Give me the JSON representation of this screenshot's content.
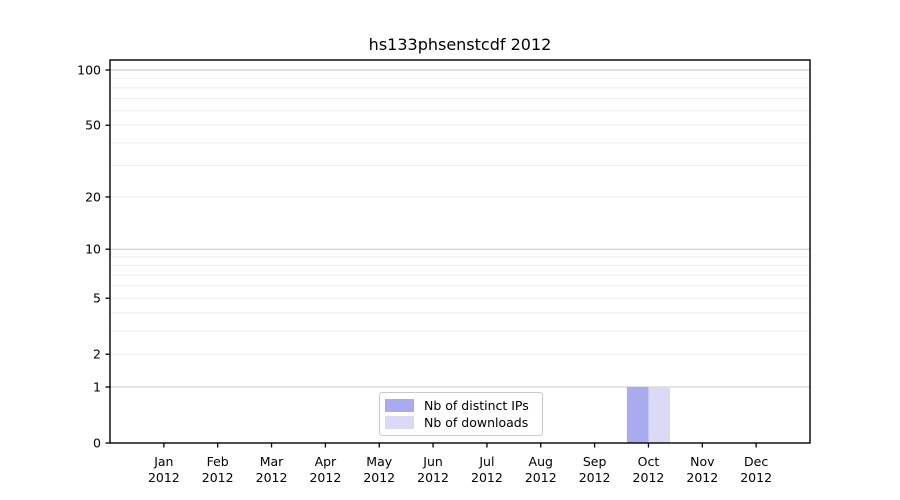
{
  "figure": {
    "title": "hs133phsenstcdf 2012"
  },
  "chart_data": {
    "type": "bar",
    "title": "hs133phsenstcdf 2012",
    "x_months": [
      "Jan",
      "Feb",
      "Mar",
      "Apr",
      "May",
      "Jun",
      "Jul",
      "Aug",
      "Sep",
      "Oct",
      "Nov",
      "Dec"
    ],
    "x_year": "2012",
    "series": [
      {
        "name": "Nb of distinct IPs",
        "color": "#aaaaee",
        "values": [
          0,
          0,
          0,
          0,
          0,
          0,
          0,
          0,
          0,
          1,
          0,
          0
        ]
      },
      {
        "name": "Nb of downloads",
        "color": "#dadaf7",
        "values": [
          0,
          0,
          0,
          0,
          0,
          0,
          0,
          0,
          0,
          1,
          0,
          0
        ]
      }
    ],
    "yscale": "log1p",
    "ylim": [
      0,
      113
    ],
    "yticks": [
      0,
      1,
      2,
      5,
      10,
      20,
      50,
      100
    ],
    "gridlines": {
      "major": [
        1,
        10,
        100
      ],
      "minor": [
        2,
        3,
        4,
        5,
        6,
        7,
        8,
        9,
        20,
        30,
        40,
        50,
        60,
        70,
        80,
        90
      ]
    },
    "colors": {
      "grid_major": "#c6c6c6",
      "grid_minor": "#ededed",
      "axis": "#000000",
      "text": "#000000"
    },
    "legend": {
      "position": "lower-center-inside",
      "entries": [
        "Nb of distinct IPs",
        "Nb of downloads"
      ]
    }
  }
}
